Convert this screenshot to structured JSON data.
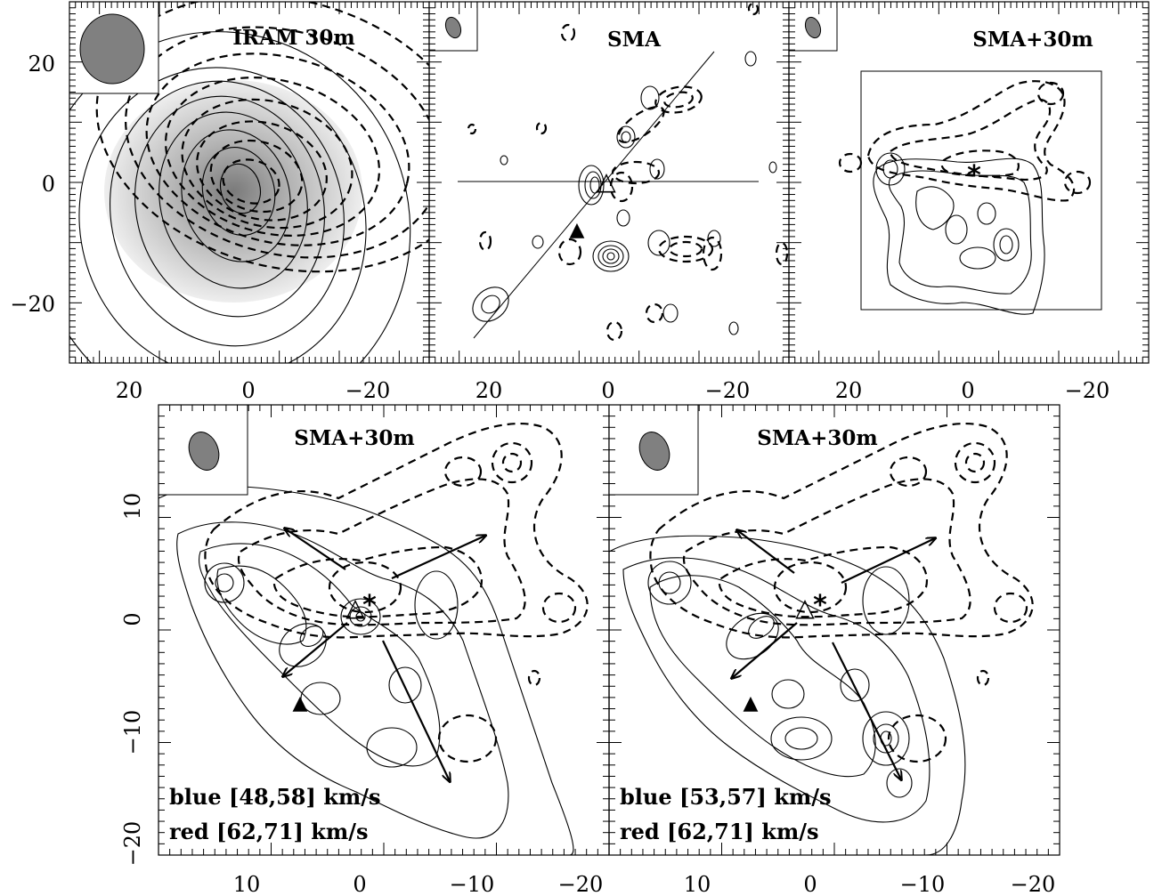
{
  "panels": {
    "p1": {
      "title": "IRAM 30m"
    },
    "p2": {
      "title": "SMA"
    },
    "p3": {
      "title": "SMA+30m"
    },
    "p4": {
      "title": "SMA+30m",
      "blue_label": "blue [48,58] km/s",
      "red_label": "red [62,71] km/s"
    },
    "p5": {
      "title": "SMA+30m",
      "blue_label": "blue [53,57] km/s",
      "red_label": "red [62,71] km/s"
    }
  },
  "top_axes": {
    "y_ticks": [
      "20",
      "0",
      "−20"
    ],
    "x_ticks": [
      "20",
      "0",
      "−20"
    ]
  },
  "bottom_axes": {
    "y_ticks": [
      "10",
      "0",
      "−10",
      "−20"
    ],
    "x_ticks": [
      "10",
      "0",
      "−10",
      "−20"
    ]
  },
  "markers": {
    "star": "★",
    "triangle_open": "△",
    "triangle_filled": "▲"
  },
  "colors": {
    "beam": "#808080",
    "grey_fill": "#b0b0b0"
  }
}
